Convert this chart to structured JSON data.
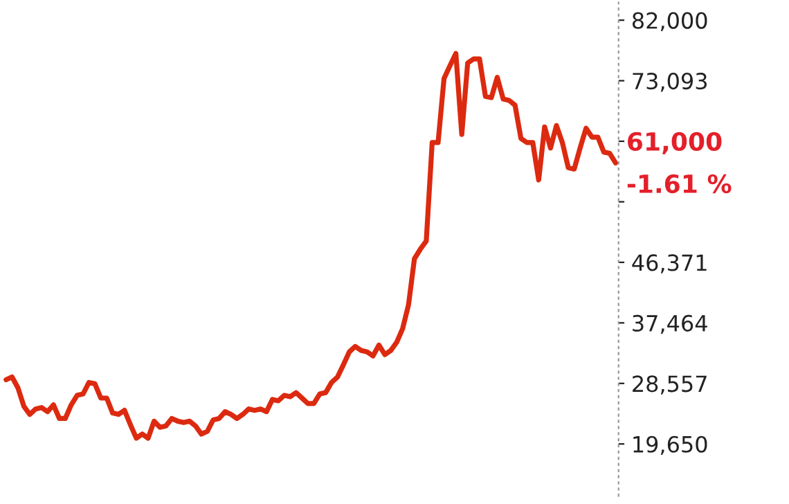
{
  "chart_data": {
    "type": "line",
    "categories": [
      null,
      null,
      null,
      null,
      null,
      null,
      null,
      null,
      null,
      null,
      null,
      null,
      null,
      null,
      null,
      null,
      null,
      null,
      null,
      null,
      null,
      null,
      null,
      null,
      null,
      null,
      null,
      null,
      null,
      null,
      null,
      null,
      null,
      null,
      null,
      null,
      null,
      null,
      null,
      null,
      null,
      null,
      null,
      null,
      null,
      null,
      null,
      null,
      null,
      null,
      null,
      null,
      null,
      null,
      null,
      null,
      null,
      null,
      null,
      null,
      null,
      null,
      null,
      null,
      null,
      null,
      null,
      null,
      null,
      null,
      null,
      null,
      null,
      null,
      null,
      null,
      null,
      null,
      null,
      null,
      null,
      null,
      null,
      null,
      null,
      null,
      null,
      null,
      null,
      null,
      null,
      null,
      null,
      null,
      null,
      null,
      null,
      null,
      null,
      null,
      null,
      null,
      null,
      null
    ],
    "series": [
      {
        "color": "#dc2a10",
        "values": [
          29100,
          29500,
          27900,
          25200,
          24000,
          24800,
          25000,
          24400,
          25400,
          23400,
          23400,
          25400,
          26800,
          27000,
          28700,
          28500,
          26400,
          26400,
          24200,
          24000,
          24600,
          22500,
          20500,
          21100,
          20500,
          23000,
          22100,
          22300,
          23400,
          23000,
          22800,
          23000,
          22300,
          21100,
          21500,
          23200,
          23400,
          24400,
          24000,
          23400,
          24000,
          24800,
          24600,
          24800,
          24400,
          26200,
          26000,
          26800,
          26600,
          27200,
          26400,
          25600,
          25600,
          27000,
          27200,
          28700,
          29500,
          31300,
          33200,
          34000,
          33400,
          33200,
          32600,
          34200,
          32800,
          33400,
          34600,
          36600,
          40100,
          46900,
          48300,
          49500,
          64000,
          64000,
          73400,
          75300,
          77100,
          65200,
          75700,
          76300,
          76300,
          70800,
          70600,
          73600,
          70400,
          70200,
          69500,
          64600,
          64000,
          64000,
          58500,
          66300,
          63200,
          66500,
          64000,
          60300,
          60100,
          63200,
          66100,
          64800,
          64800,
          62600,
          62400,
          61000
        ]
      }
    ],
    "ylim": [
      12000,
      84600
    ],
    "yticks": [
      {
        "value": 19650,
        "label": "19,650"
      },
      {
        "value": 28557,
        "label": "28,557"
      },
      {
        "value": 37464,
        "label": "37,464"
      },
      {
        "value": 46371,
        "label": "46,371"
      },
      {
        "value": 55278,
        "label": null
      },
      {
        "value": 64186,
        "label": null
      },
      {
        "value": 73093,
        "label": "73,093"
      },
      {
        "value": 82000,
        "label": "82,000"
      }
    ],
    "annotations": [
      "61,000",
      "-1.61 %"
    ],
    "tick_labels": "y"
  }
}
